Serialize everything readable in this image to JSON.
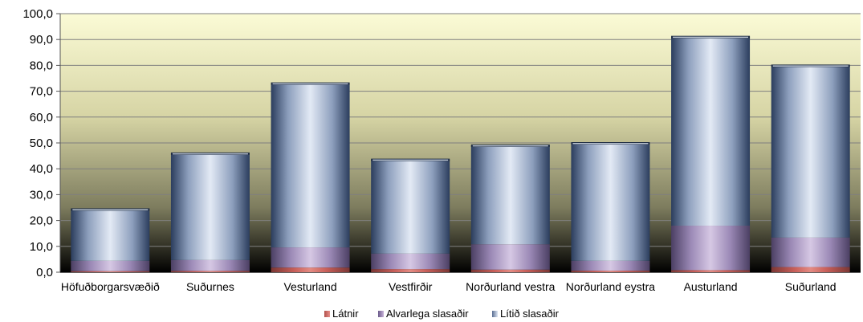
{
  "colors": {
    "latnir": "#d9746d",
    "alvarlega": "#c8b2d8",
    "litid_light": "#dde6f3",
    "litid_dark": "#2b3d5d",
    "plot_bg_top": "#fbfbd6",
    "plot_bg_bottom": "#000000"
  },
  "chart_data": {
    "type": "bar",
    "stacked": true,
    "categories": [
      "Höfuðborgarsvæðið",
      "Suðurnes",
      "Vesturland",
      "Vestfirðir",
      "Norðurland vestra",
      "Norðurland eystra",
      "Austurland",
      "Suðurland"
    ],
    "series": [
      {
        "name": "Látnir",
        "values": [
          0.4,
          0.5,
          1.8,
          1.2,
          1.0,
          0.6,
          0.8,
          2.0
        ]
      },
      {
        "name": "Alvarlega slasaðir",
        "values": [
          4.0,
          4.2,
          7.8,
          6.0,
          9.8,
          3.8,
          17.2,
          11.4
        ]
      },
      {
        "name": "Lítið slasaðir",
        "values": [
          20.0,
          41.3,
          63.5,
          36.4,
          38.3,
          45.6,
          73.1,
          66.6
        ]
      }
    ],
    "ylim": [
      0,
      100
    ],
    "yticks": [
      "0,0",
      "10,0",
      "20,0",
      "30,0",
      "40,0",
      "50,0",
      "60,0",
      "70,0",
      "80,0",
      "90,0",
      "100,0"
    ],
    "grid": true,
    "legend_position": "bottom"
  }
}
